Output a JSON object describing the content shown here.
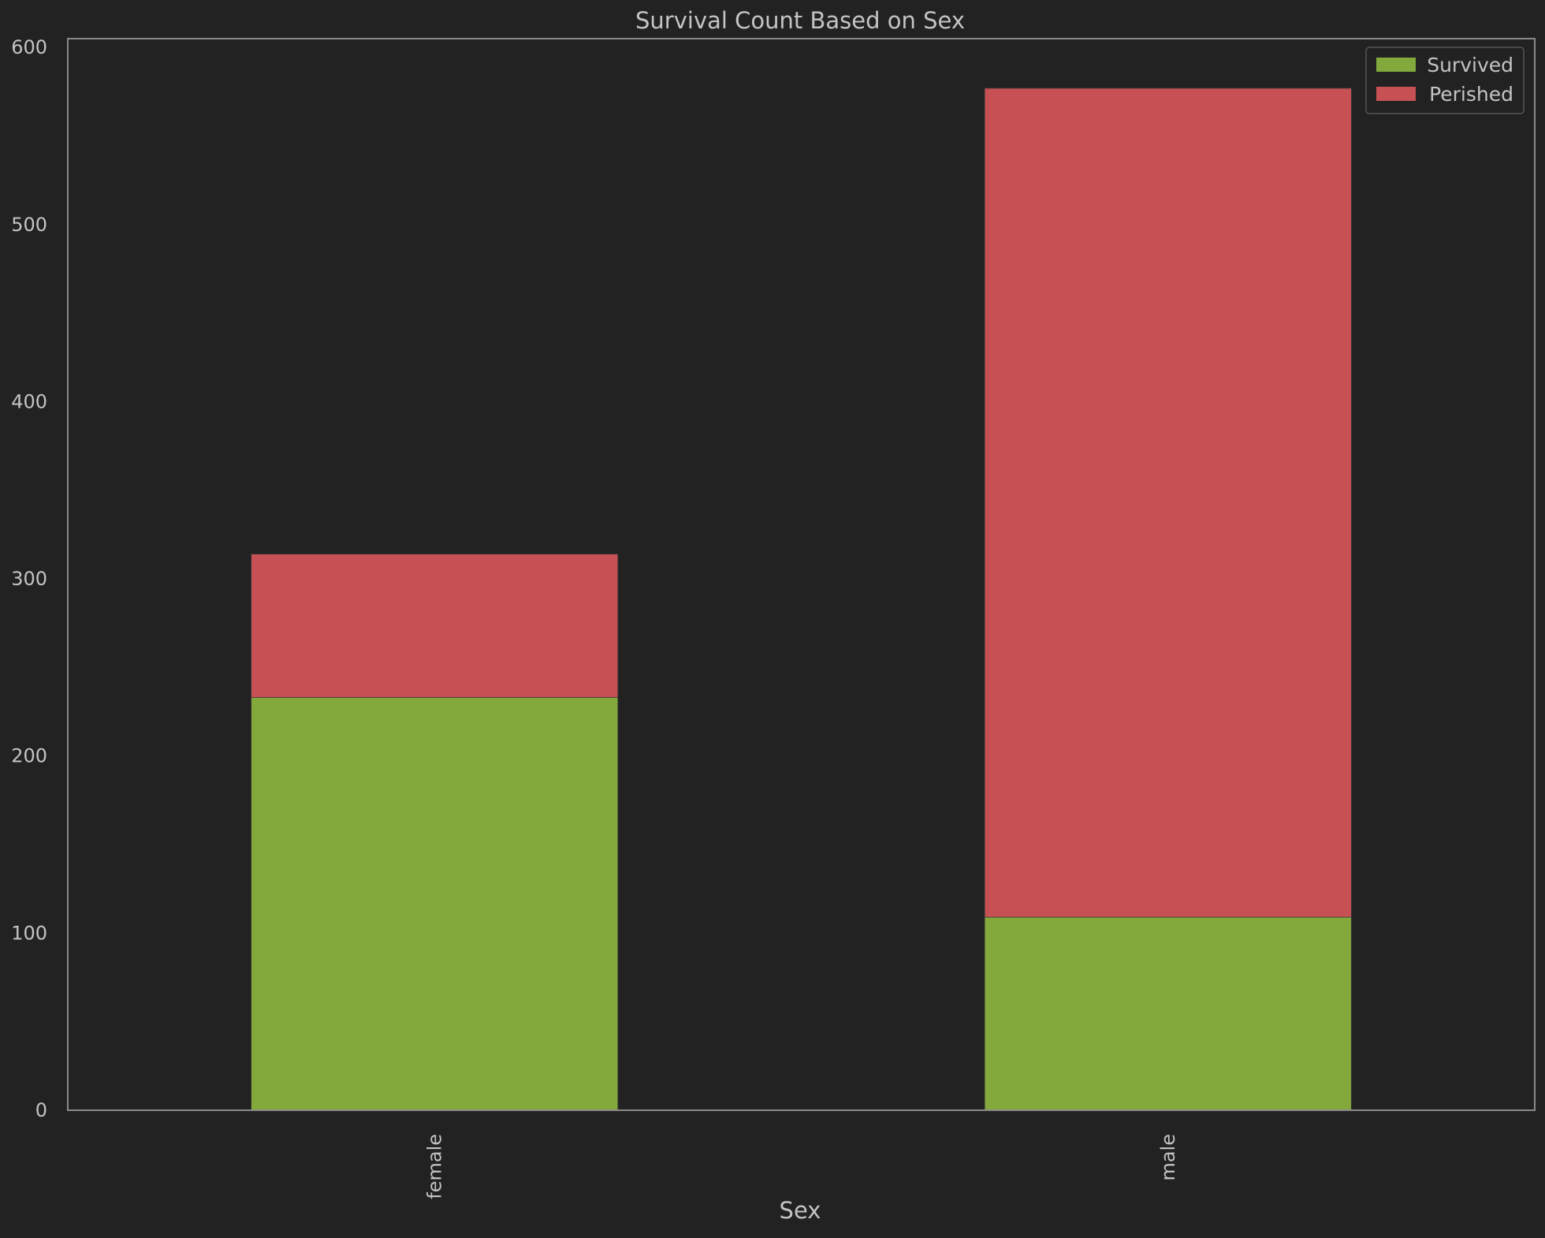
{
  "chart_data": {
    "type": "bar",
    "stacked": true,
    "title": "Survival Count Based on Sex",
    "xlabel": "Sex",
    "ylabel": "",
    "categories": [
      "female",
      "male"
    ],
    "series": [
      {
        "name": "Survived",
        "values": [
          233,
          109
        ],
        "color": "#83a83b"
      },
      {
        "name": "Perished",
        "values": [
          81,
          468
        ],
        "color": "#c65053"
      }
    ],
    "ylim": [
      0,
      605
    ],
    "yticks": [
      0,
      100,
      200,
      300,
      400,
      500,
      600
    ],
    "grid": false,
    "legend_position": "top-right",
    "colors": {
      "background": "#222222",
      "axes_edge": "#8a8a8a",
      "text": "#c4c4c4",
      "legend_frame": "#555555"
    }
  }
}
